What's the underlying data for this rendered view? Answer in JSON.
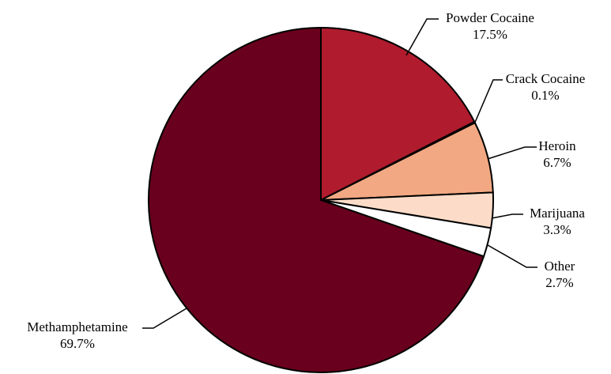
{
  "chart_data": {
    "type": "pie",
    "title": "",
    "legend": "none",
    "slices": [
      {
        "name": "Powder Cocaine",
        "value": 17.5,
        "label": "17.5%",
        "color": "#B01B2E"
      },
      {
        "name": "Crack Cocaine",
        "value": 0.1,
        "label": "0.1%",
        "color": "#B01B2E"
      },
      {
        "name": "Heroin",
        "value": 6.7,
        "label": "6.7%",
        "color": "#F2A882"
      },
      {
        "name": "Marijuana",
        "value": 3.3,
        "label": "3.3%",
        "color": "#FCDCC8"
      },
      {
        "name": "Other",
        "value": 2.7,
        "label": "2.7%",
        "color": "#FFFFFF"
      },
      {
        "name": "Methamphetamine",
        "value": 69.7,
        "label": "69.7%",
        "color": "#69001D"
      }
    ]
  }
}
